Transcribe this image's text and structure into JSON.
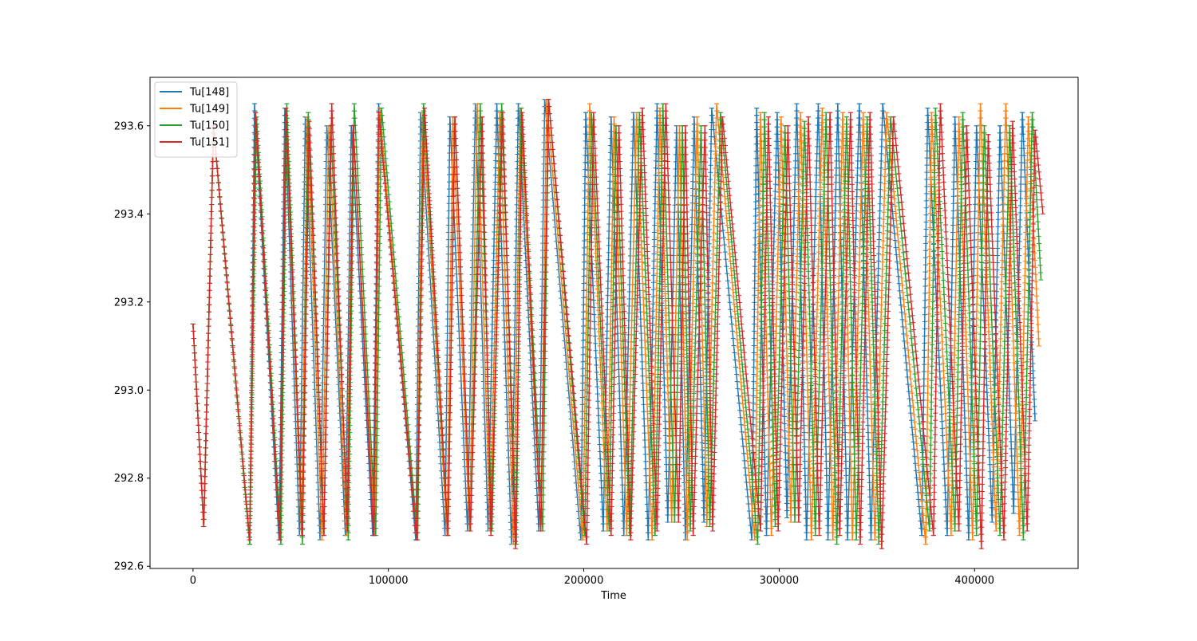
{
  "chart_data": {
    "type": "line",
    "title": "",
    "xlabel": "Time",
    "ylabel": "",
    "xlim": [
      -22000,
      453000
    ],
    "ylim": [
      292.595,
      293.71
    ],
    "x_ticks": [
      0,
      100000,
      200000,
      300000,
      400000
    ],
    "x_tick_labels": [
      "0",
      "100000",
      "200000",
      "300000",
      "400000"
    ],
    "y_ticks": [
      292.6,
      292.8,
      293.0,
      293.2,
      293.4,
      293.6
    ],
    "y_tick_labels": [
      "292.6",
      "292.8",
      "293.0",
      "293.2",
      "293.4",
      "293.6"
    ],
    "grid": false,
    "legend_position": "top-left",
    "marker": "tick",
    "series": [
      {
        "name": "Tu[148]",
        "color": "#1f77b4",
        "x": [
          0,
          5500,
          10500,
          29000,
          31500,
          44000,
          47000,
          54500,
          57500,
          65000,
          68500,
          78000,
          81000,
          92000,
          95000,
          114000,
          116500,
          129000,
          131500,
          140500,
          144500,
          151000,
          155500,
          163000,
          166500,
          177000,
          180000,
          198500,
          201000,
          210000,
          214000,
          220500,
          225500,
          233000,
          237500,
          243000,
          247500,
          252000,
          256500,
          261500,
          265500,
          286000,
          288500,
          293500,
          299000,
          304000,
          309000,
          314000,
          320000,
          325000,
          330000,
          335000,
          341000,
          347000,
          353000,
          373000,
          376000,
          386000,
          390000,
          397000,
          401000,
          409000,
          413000,
          420000,
          424500,
          431000
        ],
        "y": [
          293.15,
          292.69,
          293.6,
          292.65,
          293.65,
          292.66,
          293.64,
          292.67,
          293.62,
          292.66,
          293.6,
          292.67,
          293.6,
          292.67,
          293.65,
          292.66,
          293.63,
          292.67,
          293.62,
          292.68,
          293.65,
          292.68,
          293.65,
          292.65,
          293.65,
          292.68,
          293.66,
          292.66,
          293.63,
          292.68,
          293.62,
          292.67,
          293.63,
          292.66,
          293.65,
          292.7,
          293.6,
          292.66,
          293.62,
          292.7,
          293.64,
          292.66,
          293.64,
          292.67,
          293.63,
          292.71,
          293.65,
          292.66,
          293.65,
          292.66,
          293.65,
          292.66,
          293.65,
          292.66,
          293.65,
          292.67,
          293.64,
          292.67,
          293.62,
          292.66,
          293.6,
          292.7,
          293.6,
          292.72,
          293.63,
          292.93
        ]
      },
      {
        "name": "Tu[149]",
        "color": "#ff7f0e",
        "x": [
          0,
          5500,
          10500,
          29000,
          32000,
          44500,
          47500,
          55500,
          58500,
          66000,
          69500,
          78500,
          82000,
          93000,
          95500,
          114500,
          117500,
          130000,
          133000,
          141500,
          145500,
          152000,
          157000,
          164000,
          167500,
          178000,
          181000,
          199500,
          203000,
          212000,
          215500,
          222000,
          227000,
          235000,
          239000,
          245000,
          249000,
          253000,
          258000,
          263000,
          268000,
          287500,
          290500,
          296000,
          301000,
          306000,
          311000,
          316500,
          322000,
          327500,
          332500,
          337500,
          343000,
          349000,
          355000,
          375000,
          378000,
          388000,
          392000,
          399000,
          403000,
          411000,
          416000,
          423000,
          427500,
          433000
        ],
        "y": [
          293.15,
          292.69,
          293.6,
          292.65,
          293.63,
          292.66,
          293.64,
          292.67,
          293.62,
          292.66,
          293.6,
          292.67,
          293.6,
          292.67,
          293.64,
          292.66,
          293.63,
          292.67,
          293.62,
          292.68,
          293.65,
          292.68,
          293.63,
          292.65,
          293.64,
          292.68,
          293.66,
          292.66,
          293.65,
          292.68,
          293.62,
          292.67,
          293.63,
          292.66,
          293.64,
          292.7,
          293.6,
          292.66,
          293.62,
          292.69,
          293.65,
          292.66,
          293.63,
          292.67,
          293.62,
          292.7,
          293.63,
          292.66,
          293.64,
          292.66,
          293.63,
          292.66,
          293.63,
          292.66,
          293.63,
          292.65,
          293.63,
          292.67,
          293.62,
          292.66,
          293.65,
          292.68,
          293.65,
          292.67,
          293.62,
          293.1
        ]
      },
      {
        "name": "Tu[150]",
        "color": "#2ca02c",
        "x": [
          0,
          5500,
          10500,
          29000,
          32500,
          45000,
          48000,
          56000,
          59000,
          67000,
          70500,
          79500,
          82500,
          93500,
          96500,
          115000,
          118000,
          130500,
          134000,
          142000,
          147000,
          153000,
          158000,
          165500,
          168000,
          179000,
          182000,
          200500,
          204000,
          213000,
          216500,
          223500,
          228500,
          236500,
          240500,
          246500,
          250500,
          254500,
          260000,
          264500,
          270000,
          289000,
          292500,
          298000,
          303000,
          308000,
          313000,
          318500,
          324000,
          329500,
          334500,
          339500,
          345000,
          351000,
          357000,
          377000,
          380000,
          390000,
          394000,
          401000,
          405000,
          413000,
          418000,
          425000,
          429500,
          434000
        ],
        "y": [
          293.15,
          292.69,
          293.6,
          292.65,
          293.62,
          292.65,
          293.65,
          292.65,
          293.63,
          292.67,
          293.6,
          292.66,
          293.65,
          292.67,
          293.64,
          292.66,
          293.65,
          292.67,
          293.62,
          292.68,
          293.65,
          292.68,
          293.65,
          292.65,
          293.64,
          292.68,
          293.66,
          292.67,
          293.63,
          292.68,
          293.6,
          292.67,
          293.63,
          292.67,
          293.65,
          292.7,
          293.6,
          292.68,
          293.6,
          292.69,
          293.63,
          292.65,
          293.63,
          292.69,
          293.6,
          292.7,
          293.61,
          292.67,
          293.63,
          292.65,
          293.62,
          292.66,
          293.62,
          292.65,
          293.62,
          292.68,
          293.64,
          292.68,
          293.63,
          292.67,
          293.6,
          292.67,
          293.6,
          292.66,
          293.63,
          293.25
        ]
      },
      {
        "name": "Tu[151]",
        "color": "#d62728",
        "x": [
          0,
          5500,
          10500,
          29000,
          32000,
          44500,
          47500,
          56000,
          59500,
          67000,
          71000,
          79000,
          82000,
          92500,
          95000,
          114500,
          118500,
          130500,
          134000,
          142000,
          148000,
          152500,
          158500,
          165000,
          168500,
          178000,
          182000,
          201500,
          205000,
          214000,
          218000,
          224000,
          230000,
          237500,
          242000,
          248500,
          252000,
          256000,
          262000,
          266000,
          271000,
          290500,
          294500,
          299500,
          304500,
          310000,
          315000,
          320500,
          326000,
          331000,
          336500,
          341500,
          346500,
          352500,
          358500,
          379000,
          382500,
          392000,
          396000,
          403500,
          407000,
          415000,
          419500,
          427000,
          431000,
          435000
        ],
        "y": [
          293.15,
          292.69,
          293.6,
          292.66,
          293.63,
          292.66,
          293.64,
          292.67,
          293.61,
          292.67,
          293.65,
          292.68,
          293.6,
          292.67,
          293.63,
          292.66,
          293.64,
          292.67,
          293.62,
          292.68,
          293.62,
          292.67,
          293.63,
          292.64,
          293.63,
          292.68,
          293.66,
          292.65,
          293.63,
          292.67,
          293.6,
          292.66,
          293.64,
          292.68,
          293.65,
          292.7,
          293.6,
          292.67,
          293.6,
          292.68,
          293.62,
          292.68,
          293.62,
          292.68,
          293.6,
          292.7,
          293.62,
          292.67,
          293.63,
          292.67,
          293.63,
          292.65,
          293.63,
          292.64,
          293.62,
          292.67,
          293.65,
          292.68,
          293.6,
          292.64,
          293.58,
          292.66,
          293.61,
          292.68,
          293.59,
          293.4
        ]
      }
    ]
  }
}
